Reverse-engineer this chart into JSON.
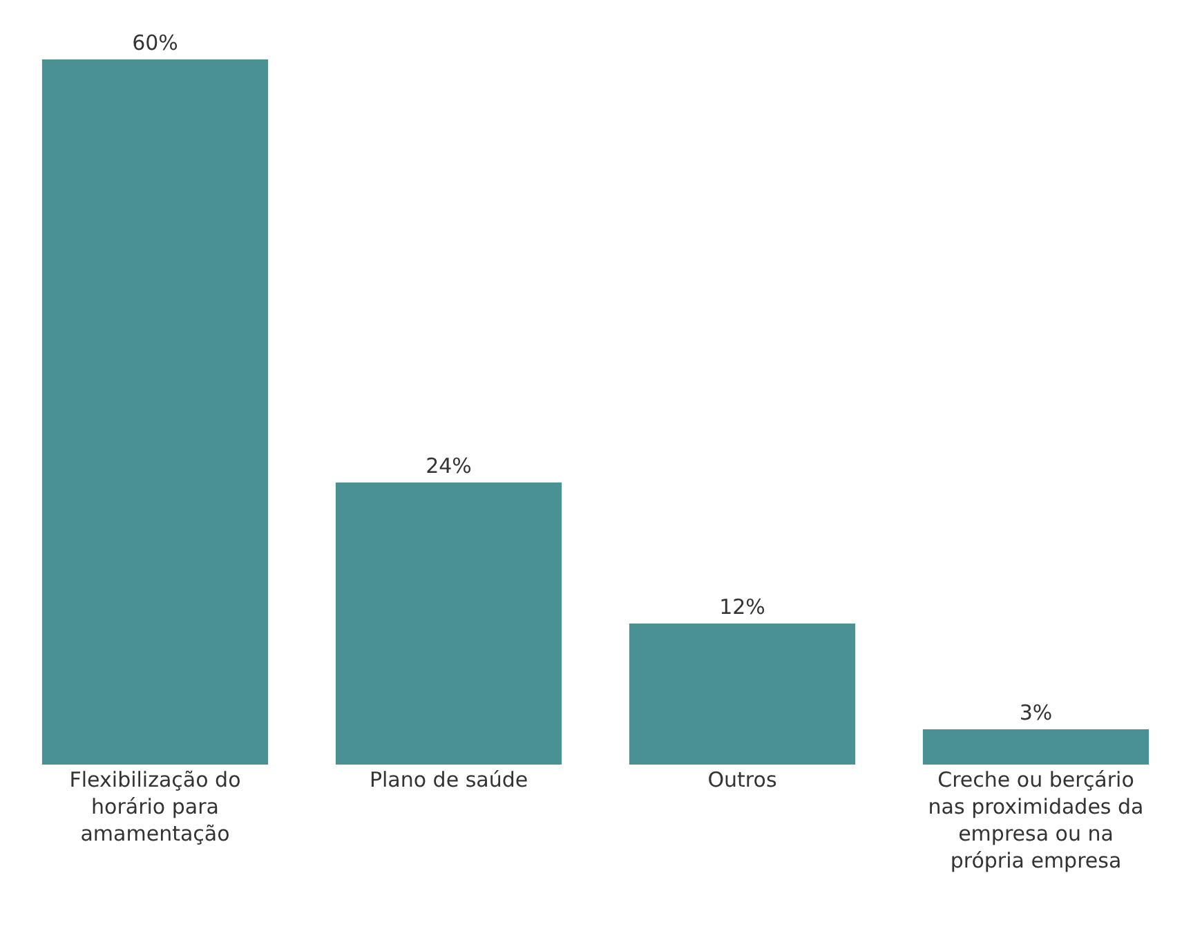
{
  "chart_data": {
    "type": "bar",
    "categories": [
      "Flexibilização do horário para amamentação",
      "Plano de saúde",
      "Outros",
      "Creche ou berçário nas proximidades da empresa ou na própria empresa"
    ],
    "values": [
      60,
      24,
      12,
      3
    ],
    "value_labels": [
      "60%",
      "24%",
      "12%",
      "3%"
    ],
    "color": "#4a9194",
    "ylim": [
      0,
      60
    ],
    "tick_labels": "x"
  }
}
